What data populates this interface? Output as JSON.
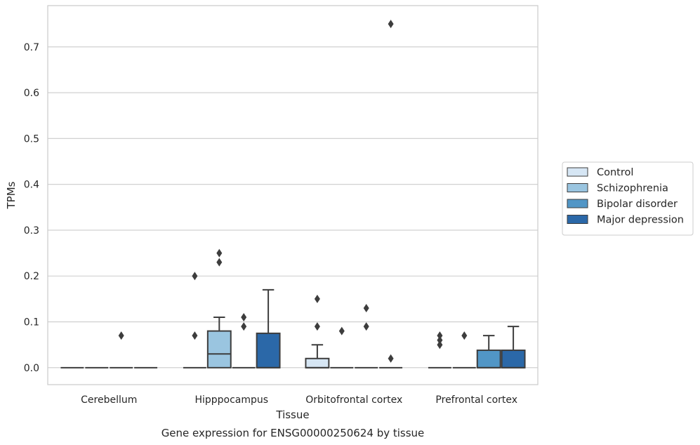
{
  "chart_data": {
    "type": "box",
    "title": "",
    "caption": "Gene expression for ENSG00000250624 by tissue",
    "xlabel": "Tissue",
    "ylabel": "TPMs",
    "ylim": [
      -0.037,
      0.79
    ],
    "yticks": [
      "0.0",
      "0.1",
      "0.2",
      "0.3",
      "0.4",
      "0.5",
      "0.6",
      "0.7"
    ],
    "grid": "horizontal",
    "legend_position": "right",
    "categories": [
      "Cerebellum",
      "Hipppocampus",
      "Orbitofrontal cortex",
      "Prefrontal cortex"
    ],
    "series": [
      {
        "name": "Control",
        "color": "#d6e6f4",
        "boxes": [
          {
            "q1": 0,
            "median": 0,
            "q3": 0,
            "whisker_low": 0,
            "whisker_high": 0,
            "outliers": []
          },
          {
            "q1": 0,
            "median": 0,
            "q3": 0,
            "whisker_low": 0,
            "whisker_high": 0,
            "outliers": [
              0.07,
              0.2
            ]
          },
          {
            "q1": 0,
            "median": 0,
            "q3": 0.02,
            "whisker_low": 0,
            "whisker_high": 0.05,
            "outliers": [
              0.09,
              0.15
            ]
          },
          {
            "q1": 0,
            "median": 0,
            "q3": 0,
            "whisker_low": 0,
            "whisker_high": 0,
            "outliers": [
              0.05,
              0.06,
              0.07
            ]
          }
        ]
      },
      {
        "name": "Schizophrenia",
        "color": "#9ac5e0",
        "boxes": [
          {
            "q1": 0,
            "median": 0,
            "q3": 0,
            "whisker_low": 0,
            "whisker_high": 0,
            "outliers": []
          },
          {
            "q1": 0,
            "median": 0.03,
            "q3": 0.08,
            "whisker_low": 0,
            "whisker_high": 0.11,
            "outliers": [
              0.23,
              0.25
            ]
          },
          {
            "q1": 0,
            "median": 0,
            "q3": 0,
            "whisker_low": 0,
            "whisker_high": 0,
            "outliers": [
              0.08
            ]
          },
          {
            "q1": 0,
            "median": 0,
            "q3": 0,
            "whisker_low": 0,
            "whisker_high": 0,
            "outliers": [
              0.07
            ]
          }
        ]
      },
      {
        "name": "Bipolar disorder",
        "color": "#5196c6",
        "boxes": [
          {
            "q1": 0,
            "median": 0,
            "q3": 0,
            "whisker_low": 0,
            "whisker_high": 0,
            "outliers": [
              0.07
            ]
          },
          {
            "q1": 0,
            "median": 0,
            "q3": 0,
            "whisker_low": 0,
            "whisker_high": 0,
            "outliers": [
              0.09,
              0.11
            ]
          },
          {
            "q1": 0,
            "median": 0,
            "q3": 0,
            "whisker_low": 0,
            "whisker_high": 0,
            "outliers": [
              0.09,
              0.13
            ]
          },
          {
            "q1": 0,
            "median": 0,
            "q3": 0.038,
            "whisker_low": 0,
            "whisker_high": 0.07,
            "outliers": []
          }
        ]
      },
      {
        "name": "Major depression",
        "color": "#2b68a8",
        "boxes": [
          {
            "q1": 0,
            "median": 0,
            "q3": 0,
            "whisker_low": 0,
            "whisker_high": 0,
            "outliers": []
          },
          {
            "q1": 0,
            "median": 0,
            "q3": 0.075,
            "whisker_low": 0,
            "whisker_high": 0.17,
            "outliers": []
          },
          {
            "q1": 0,
            "median": 0,
            "q3": 0,
            "whisker_low": 0,
            "whisker_high": 0,
            "outliers": [
              0.02,
              0.75
            ]
          },
          {
            "q1": 0,
            "median": 0,
            "q3": 0.038,
            "whisker_low": 0,
            "whisker_high": 0.09,
            "outliers": []
          }
        ]
      }
    ]
  }
}
